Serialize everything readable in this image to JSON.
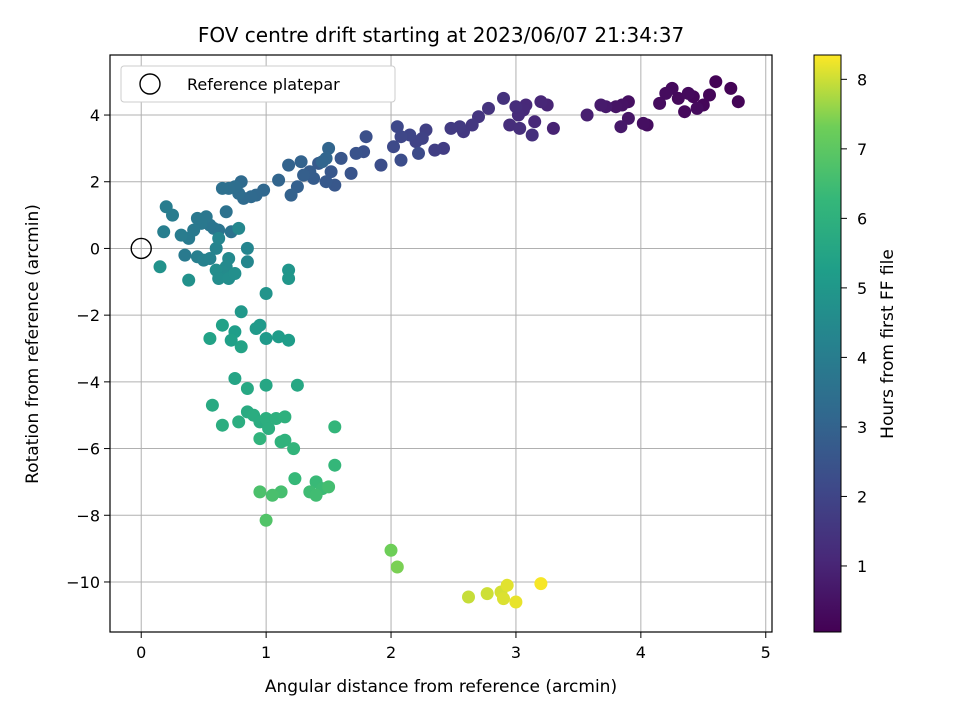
{
  "chart_data": {
    "type": "scatter",
    "title": "FOV centre drift starting at 2023/06/07 21:34:37",
    "xlabel": "Angular distance from reference (arcmin)",
    "ylabel": "Rotation from reference (arcmin)",
    "colorbar_label": "Hours from first FF file",
    "xlim": [
      -0.25,
      5.05
    ],
    "ylim": [
      -11.5,
      5.8
    ],
    "clim": [
      0.05,
      8.35
    ],
    "colormap": "viridis",
    "grid": true,
    "legend_position": "upper-left",
    "x_ticks": [
      0,
      1,
      2,
      3,
      4,
      5
    ],
    "x_tick_labels": [
      "0",
      "1",
      "2",
      "3",
      "4",
      "5"
    ],
    "y_ticks": [
      4,
      2,
      0,
      -2,
      -4,
      -6,
      -8,
      -10
    ],
    "y_tick_labels": [
      "4",
      "2",
      "0",
      "−2",
      "−4",
      "−6",
      "−8",
      "−10"
    ],
    "colorbar_ticks": [
      1,
      2,
      3,
      4,
      5,
      6,
      7,
      8
    ],
    "colorbar_tick_labels": [
      "1",
      "2",
      "3",
      "4",
      "5",
      "6",
      "7",
      "8"
    ],
    "reference": {
      "label": "Reference platepar",
      "x": 0,
      "y": 0
    },
    "points": [
      [
        4.6,
        5.0,
        0.1
      ],
      [
        4.72,
        4.8,
        0.12
      ],
      [
        4.78,
        4.4,
        0.15
      ],
      [
        4.5,
        4.3,
        0.18
      ],
      [
        4.55,
        4.6,
        0.2
      ],
      [
        4.42,
        4.55,
        0.22
      ],
      [
        4.35,
        4.1,
        0.24
      ],
      [
        4.3,
        4.5,
        0.26
      ],
      [
        4.25,
        4.8,
        0.3
      ],
      [
        4.2,
        4.65,
        0.33
      ],
      [
        4.15,
        4.35,
        0.35
      ],
      [
        4.38,
        4.65,
        0.28
      ],
      [
        4.45,
        4.2,
        0.32
      ],
      [
        4.05,
        3.7,
        0.38
      ],
      [
        4.02,
        3.75,
        0.42
      ],
      [
        3.9,
        4.4,
        0.45
      ],
      [
        3.85,
        4.3,
        0.5
      ],
      [
        3.8,
        4.25,
        0.55
      ],
      [
        3.9,
        3.9,
        0.6
      ],
      [
        3.84,
        3.65,
        0.65
      ],
      [
        3.72,
        4.25,
        0.7
      ],
      [
        3.68,
        4.3,
        0.75
      ],
      [
        3.57,
        4.0,
        0.85
      ],
      [
        3.3,
        3.6,
        0.95
      ],
      [
        3.25,
        4.3,
        1.0
      ],
      [
        3.2,
        4.4,
        1.05
      ],
      [
        3.15,
        3.8,
        1.1
      ],
      [
        3.08,
        4.3,
        1.12
      ],
      [
        3.06,
        4.15,
        1.15
      ],
      [
        3.02,
        4.0,
        1.2
      ],
      [
        3.0,
        4.25,
        1.25
      ],
      [
        2.95,
        3.7,
        1.28
      ],
      [
        3.03,
        3.6,
        1.3
      ],
      [
        3.13,
        3.4,
        1.35
      ],
      [
        2.9,
        4.5,
        1.4
      ],
      [
        2.78,
        4.2,
        1.45
      ],
      [
        2.7,
        3.95,
        1.5
      ],
      [
        2.65,
        3.7,
        1.55
      ],
      [
        2.58,
        3.5,
        1.6
      ],
      [
        2.55,
        3.65,
        1.65
      ],
      [
        2.48,
        3.6,
        1.7
      ],
      [
        2.42,
        3.0,
        1.75
      ],
      [
        2.35,
        2.95,
        1.8
      ],
      [
        2.28,
        3.55,
        1.85
      ],
      [
        2.25,
        3.3,
        1.9
      ],
      [
        2.2,
        3.2,
        1.95
      ],
      [
        2.15,
        3.4,
        2.0
      ],
      [
        2.08,
        3.35,
        2.05
      ],
      [
        2.05,
        3.65,
        2.1
      ],
      [
        2.02,
        3.05,
        2.15
      ],
      [
        2.22,
        2.85,
        2.2
      ],
      [
        2.08,
        2.65,
        2.25
      ],
      [
        1.92,
        2.5,
        2.3
      ],
      [
        1.8,
        3.35,
        2.35
      ],
      [
        1.78,
        2.9,
        2.4
      ],
      [
        1.72,
        2.85,
        2.45
      ],
      [
        1.68,
        2.25,
        2.5
      ],
      [
        1.6,
        2.7,
        2.55
      ],
      [
        1.55,
        1.9,
        2.6
      ],
      [
        1.52,
        2.3,
        2.6
      ],
      [
        1.48,
        2.0,
        2.65
      ],
      [
        1.42,
        2.55,
        2.7
      ],
      [
        1.38,
        2.1,
        2.75
      ],
      [
        1.35,
        2.3,
        2.8
      ],
      [
        1.3,
        2.2,
        2.85
      ],
      [
        1.25,
        1.85,
        2.9
      ],
      [
        1.2,
        1.6,
        2.95
      ],
      [
        1.18,
        2.5,
        3.0
      ],
      [
        1.28,
        2.6,
        3.0
      ],
      [
        1.1,
        2.05,
        3.05
      ],
      [
        1.5,
        3.0,
        3.05
      ],
      [
        1.48,
        2.7,
        3.1
      ],
      [
        1.45,
        2.6,
        3.1
      ],
      [
        0.98,
        1.75,
        3.15
      ],
      [
        0.92,
        1.6,
        3.2
      ],
      [
        0.88,
        1.55,
        3.25
      ],
      [
        0.82,
        1.5,
        3.3
      ],
      [
        0.8,
        2.0,
        3.3
      ],
      [
        0.78,
        1.65,
        3.35
      ],
      [
        0.75,
        1.85,
        3.4
      ],
      [
        0.7,
        1.8,
        3.45
      ],
      [
        0.65,
        1.8,
        3.5
      ],
      [
        0.68,
        1.1,
        3.55
      ],
      [
        0.72,
        0.5,
        3.6
      ],
      [
        0.62,
        0.55,
        3.65
      ],
      [
        0.58,
        0.6,
        3.7
      ],
      [
        0.55,
        0.7,
        3.7
      ],
      [
        0.52,
        0.95,
        3.75
      ],
      [
        0.48,
        0.75,
        3.8
      ],
      [
        0.45,
        0.9,
        3.8
      ],
      [
        0.42,
        0.55,
        3.85
      ],
      [
        0.38,
        0.3,
        3.9
      ],
      [
        0.35,
        -0.2,
        3.9
      ],
      [
        0.32,
        0.4,
        3.95
      ],
      [
        0.25,
        1.0,
        3.95
      ],
      [
        0.2,
        1.25,
        4.0
      ],
      [
        0.18,
        0.5,
        4.05
      ],
      [
        0.45,
        -0.25,
        4.1
      ],
      [
        0.5,
        -0.35,
        4.15
      ],
      [
        0.55,
        -0.3,
        4.2
      ],
      [
        0.6,
        0.0,
        4.25
      ],
      [
        0.62,
        0.3,
        4.3
      ],
      [
        0.85,
        0.0,
        4.3
      ],
      [
        0.85,
        -0.4,
        4.35
      ],
      [
        0.78,
        0.6,
        4.4
      ],
      [
        0.7,
        -0.3,
        4.45
      ],
      [
        0.68,
        -0.55,
        4.5
      ],
      [
        0.65,
        -0.7,
        4.55
      ],
      [
        0.6,
        -0.65,
        4.6
      ],
      [
        0.62,
        -0.9,
        4.6
      ],
      [
        0.7,
        -0.9,
        4.65
      ],
      [
        0.75,
        -0.75,
        4.7
      ],
      [
        0.38,
        -0.95,
        4.75
      ],
      [
        0.15,
        -0.55,
        4.8
      ],
      [
        1.0,
        -1.35,
        4.85
      ],
      [
        1.18,
        -0.65,
        4.9
      ],
      [
        1.18,
        -0.9,
        4.95
      ],
      [
        0.8,
        -1.9,
        5.0
      ],
      [
        0.95,
        -2.3,
        5.05
      ],
      [
        0.92,
        -2.4,
        5.1
      ],
      [
        1.0,
        -2.7,
        5.1
      ],
      [
        1.1,
        -2.65,
        5.15
      ],
      [
        1.18,
        -2.75,
        5.2
      ],
      [
        0.75,
        -2.5,
        5.25
      ],
      [
        0.72,
        -2.75,
        5.3
      ],
      [
        0.65,
        -2.3,
        5.35
      ],
      [
        0.55,
        -2.7,
        5.4
      ],
      [
        0.8,
        -2.95,
        5.45
      ],
      [
        0.75,
        -3.9,
        5.5
      ],
      [
        1.0,
        -4.1,
        5.55
      ],
      [
        1.25,
        -4.1,
        5.6
      ],
      [
        0.85,
        -4.2,
        5.65
      ],
      [
        0.57,
        -4.7,
        5.7
      ],
      [
        0.85,
        -4.9,
        5.75
      ],
      [
        0.9,
        -5.0,
        5.8
      ],
      [
        0.95,
        -5.2,
        5.8
      ],
      [
        0.78,
        -5.2,
        5.85
      ],
      [
        0.65,
        -5.3,
        5.85
      ],
      [
        1.0,
        -5.1,
        5.9
      ],
      [
        1.02,
        -5.4,
        5.9
      ],
      [
        1.08,
        -5.1,
        5.95
      ],
      [
        1.15,
        -5.05,
        6.0
      ],
      [
        1.15,
        -5.75,
        6.05
      ],
      [
        1.12,
        -5.8,
        6.05
      ],
      [
        0.95,
        -5.7,
        6.1
      ],
      [
        1.22,
        -6.0,
        6.15
      ],
      [
        1.55,
        -5.35,
        6.2
      ],
      [
        1.55,
        -6.5,
        6.25
      ],
      [
        1.23,
        -6.9,
        6.3
      ],
      [
        1.4,
        -7.0,
        6.35
      ],
      [
        1.45,
        -7.2,
        6.4
      ],
      [
        1.35,
        -7.3,
        6.45
      ],
      [
        1.4,
        -7.4,
        6.5
      ],
      [
        1.5,
        -7.15,
        6.55
      ],
      [
        1.12,
        -7.3,
        6.6
      ],
      [
        1.05,
        -7.4,
        6.65
      ],
      [
        0.95,
        -7.3,
        6.7
      ],
      [
        1.0,
        -8.15,
        6.8
      ],
      [
        2.0,
        -9.05,
        7.3
      ],
      [
        2.05,
        -9.55,
        7.4
      ],
      [
        2.62,
        -10.45,
        7.95
      ],
      [
        2.77,
        -10.35,
        8.0
      ],
      [
        2.88,
        -10.3,
        8.05
      ],
      [
        2.9,
        -10.5,
        8.1
      ],
      [
        2.93,
        -10.1,
        8.15
      ],
      [
        3.0,
        -10.6,
        8.2
      ],
      [
        3.2,
        -10.05,
        8.3
      ]
    ]
  }
}
